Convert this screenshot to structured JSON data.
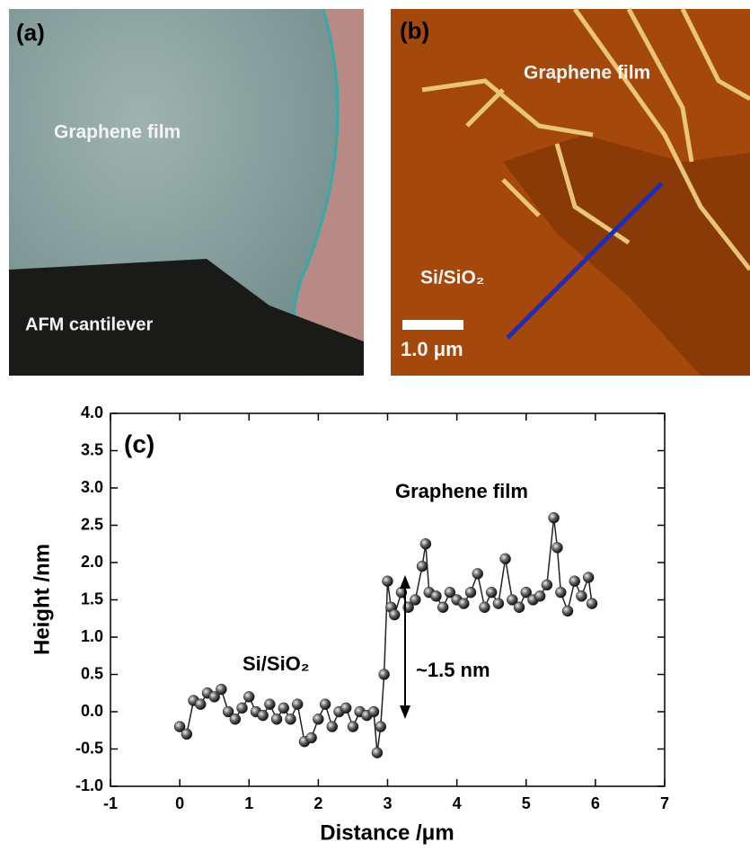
{
  "panels": {
    "a": {
      "label": "(a)",
      "film": "Graphene film",
      "cantilever": "AFM cantilever"
    },
    "b": {
      "label": "(b)",
      "film": "Graphene film",
      "substrate": "Si/SiO₂",
      "scale": "1.0 μm"
    }
  },
  "chart_data": {
    "type": "line",
    "panel_label": "(c)",
    "x_label": "Distance /μm",
    "y_label": "Height /nm",
    "annotations": {
      "film": "Graphene film",
      "substrate": "Si/SiO₂",
      "step": "~1.5 nm"
    },
    "xlim": [
      -1,
      7
    ],
    "ylim": [
      -1,
      4
    ],
    "xticks": [
      -1,
      0,
      1,
      2,
      3,
      4,
      5,
      6,
      7
    ],
    "yticks": [
      {
        "value": -1,
        "label": "-1.0"
      },
      -0.5,
      {
        "value": 0,
        "label": "0.0"
      },
      0.5,
      {
        "value": 1,
        "label": "1.0"
      },
      1.5,
      {
        "value": 2,
        "label": "2.0"
      },
      2.5,
      {
        "value": 3,
        "label": "3.0"
      },
      3.5,
      {
        "value": 4,
        "label": "4.0"
      }
    ],
    "x": [
      0.0,
      0.1,
      0.2,
      0.3,
      0.4,
      0.5,
      0.6,
      0.7,
      0.8,
      0.9,
      1.0,
      1.1,
      1.2,
      1.3,
      1.4,
      1.5,
      1.6,
      1.7,
      1.8,
      1.9,
      2.0,
      2.1,
      2.2,
      2.3,
      2.4,
      2.5,
      2.6,
      2.7,
      2.8,
      2.85,
      2.9,
      2.95,
      3.0,
      3.05,
      3.1,
      3.2,
      3.3,
      3.4,
      3.5,
      3.55,
      3.6,
      3.7,
      3.8,
      3.9,
      4.0,
      4.1,
      4.2,
      4.3,
      4.4,
      4.5,
      4.6,
      4.7,
      4.8,
      4.9,
      5.0,
      5.1,
      5.2,
      5.3,
      5.4,
      5.45,
      5.5,
      5.6,
      5.7,
      5.8,
      5.9,
      5.95
    ],
    "values": [
      -0.2,
      -0.3,
      0.15,
      0.1,
      0.25,
      0.2,
      0.3,
      0.0,
      -0.1,
      0.05,
      0.2,
      0.0,
      -0.05,
      0.1,
      -0.1,
      0.05,
      -0.1,
      0.1,
      -0.4,
      -0.35,
      -0.1,
      0.1,
      -0.2,
      0.0,
      0.05,
      -0.2,
      0.0,
      -0.05,
      0.0,
      -0.55,
      -0.2,
      0.5,
      1.75,
      1.4,
      1.3,
      1.6,
      1.4,
      1.5,
      1.95,
      2.25,
      1.6,
      1.55,
      1.4,
      1.6,
      1.5,
      1.45,
      1.6,
      1.85,
      1.4,
      1.6,
      1.45,
      2.05,
      1.5,
      1.4,
      1.6,
      1.5,
      1.55,
      1.7,
      2.6,
      2.2,
      1.6,
      1.35,
      1.75,
      1.55,
      1.8,
      1.45
    ],
    "color": "#222222"
  }
}
